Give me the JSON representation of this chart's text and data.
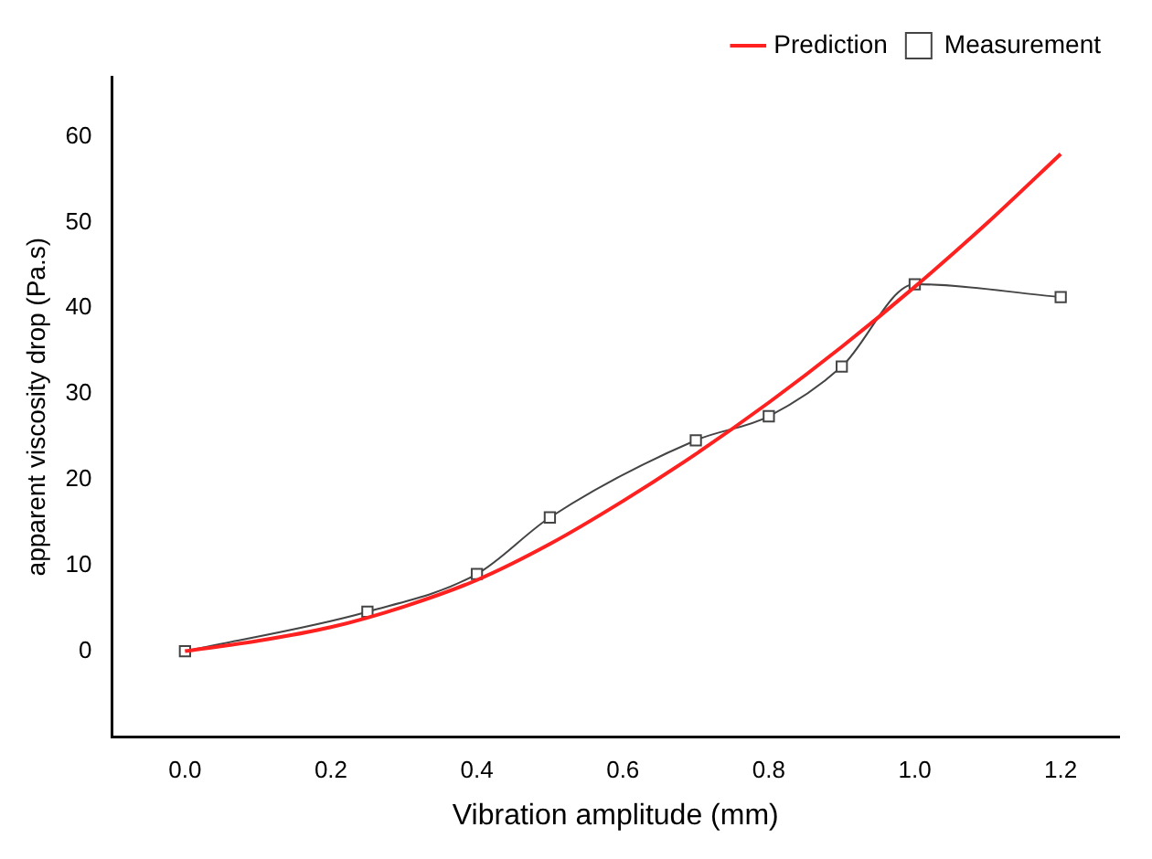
{
  "chart_data": {
    "type": "line",
    "xlabel": "Vibration amplitude (mm)",
    "ylabel": "apparent viscosity drop (Pa.s)",
    "xlim": [
      -0.1,
      1.28
    ],
    "xticks": [
      {
        "value": 0,
        "label": "0.0"
      },
      0.2,
      0.4,
      0.6,
      0.8,
      {
        "value": 1,
        "label": "1.0"
      },
      1.2
    ],
    "ylim": [
      -10,
      67
    ],
    "yticks": [
      0,
      10,
      20,
      30,
      40,
      50,
      60
    ],
    "grid": false,
    "legend": "top right",
    "series": [
      {
        "name": "Prediction",
        "color": "#ff2020",
        "marker": "none",
        "x": [
          0,
          0.1,
          0.2,
          0.3,
          0.4,
          0.5,
          0.6,
          0.7,
          0.8,
          0.9,
          1.0,
          1.1,
          1.2
        ],
        "values": [
          0,
          1.2,
          2.8,
          5.2,
          8.3,
          12.5,
          17.5,
          23,
          29,
          35.5,
          42.5,
          50,
          58
        ]
      },
      {
        "name": "Measurement",
        "color": "#444444",
        "marker": "square",
        "x": [
          0,
          0.25,
          0.4,
          0.5,
          0.7,
          0.8,
          0.9,
          1.0,
          1.2
        ],
        "values": [
          0,
          4.6,
          9,
          15.6,
          24.6,
          27.4,
          33.2,
          42.8,
          41.3
        ]
      }
    ]
  }
}
